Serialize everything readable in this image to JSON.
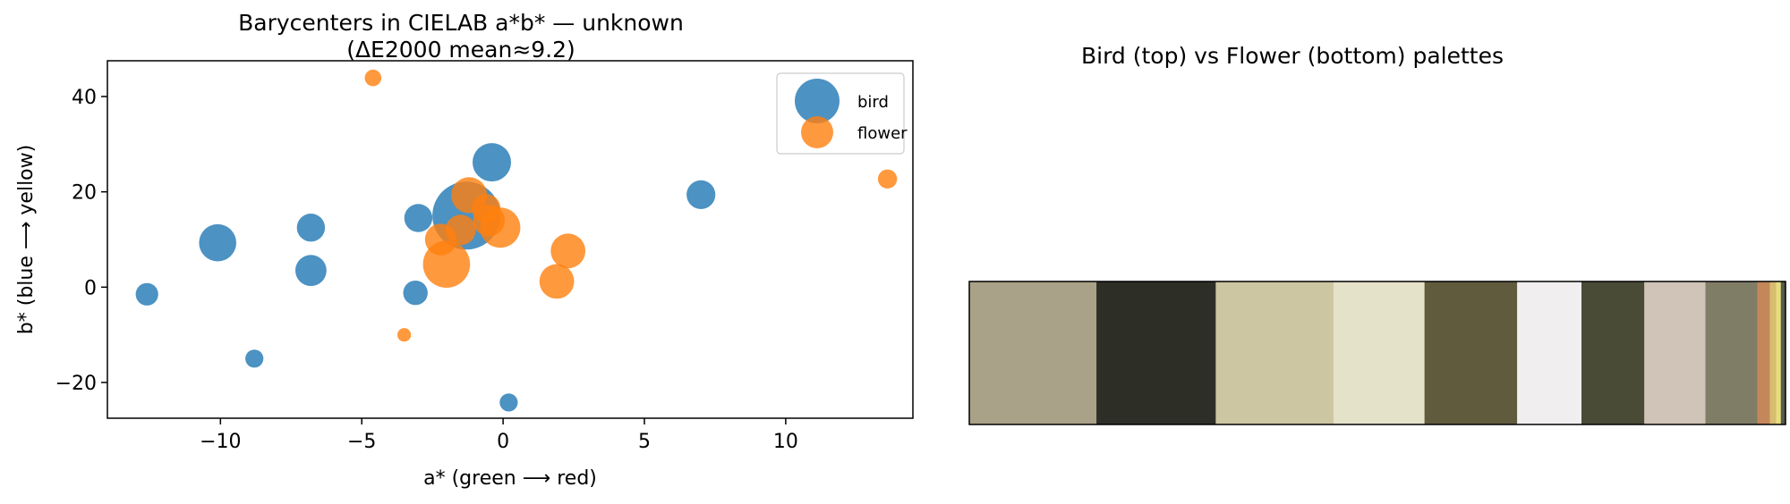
{
  "chart_data": [
    {
      "type": "scatter",
      "title": "Barycenters in CIELAB a*b* — unknown",
      "subtitle": "(ΔE2000 mean≈9.2)",
      "xlabel": "a* (green ⟶ red)",
      "ylabel": "b* (blue ⟶ yellow)",
      "xlim": [
        -14,
        14.5
      ],
      "ylim": [
        -27.5,
        47.5
      ],
      "xticks": [
        -10,
        -5,
        0,
        5,
        10
      ],
      "xtick_labels": [
        "−10",
        "−5",
        "0",
        "5",
        "10"
      ],
      "yticks": [
        -20,
        0,
        20,
        40
      ],
      "ytick_labels": [
        "−20",
        "0",
        "20",
        "40"
      ],
      "grid": false,
      "legend_position": "top-right",
      "series": [
        {
          "name": "bird",
          "color": "#1f77b4",
          "points": [
            {
              "x": -12.6,
              "y": -1.5,
              "size": 0.11
            },
            {
              "x": -10.1,
              "y": 9.3,
              "size": 0.3
            },
            {
              "x": -8.8,
              "y": -15.0,
              "size": 0.07
            },
            {
              "x": -6.8,
              "y": 12.5,
              "size": 0.17
            },
            {
              "x": -6.8,
              "y": 3.5,
              "size": 0.21
            },
            {
              "x": -3.0,
              "y": 14.5,
              "size": 0.17
            },
            {
              "x": -3.1,
              "y": -1.2,
              "size": 0.13
            },
            {
              "x": -0.4,
              "y": 26.2,
              "size": 0.32
            },
            {
              "x": 0.2,
              "y": -24.2,
              "size": 0.07
            },
            {
              "x": 7.0,
              "y": 19.4,
              "size": 0.18
            },
            {
              "x": -1.3,
              "y": 15.0,
              "size": 1.0
            }
          ]
        },
        {
          "name": "flower",
          "color": "#ff7f0e",
          "points": [
            {
              "x": -4.6,
              "y": 43.9,
              "size": 0.06
            },
            {
              "x": -3.5,
              "y": -10.0,
              "size": 0.04
            },
            {
              "x": -2.0,
              "y": 4.8,
              "size": 0.48
            },
            {
              "x": -2.2,
              "y": 10.0,
              "size": 0.22
            },
            {
              "x": -1.5,
              "y": 12.0,
              "size": 0.2
            },
            {
              "x": -1.2,
              "y": 19.3,
              "size": 0.28
            },
            {
              "x": -0.6,
              "y": 16.5,
              "size": 0.18
            },
            {
              "x": -0.5,
              "y": 14.0,
              "size": 0.22
            },
            {
              "x": -0.1,
              "y": 12.5,
              "size": 0.35
            },
            {
              "x": 1.9,
              "y": 1.2,
              "size": 0.26
            },
            {
              "x": 2.3,
              "y": 7.6,
              "size": 0.26
            },
            {
              "x": 13.6,
              "y": 22.7,
              "size": 0.08
            }
          ]
        }
      ]
    },
    {
      "type": "palette",
      "title": "Bird (top) vs Flower (bottom) palettes",
      "swatches": [
        {
          "color": "#a9a288",
          "weight": 8.1
        },
        {
          "color": "#2d2f27",
          "weight": 7.6
        },
        {
          "color": "#cdc6a2",
          "weight": 7.5
        },
        {
          "color": "#e4e2c9",
          "weight": 5.8
        },
        {
          "color": "#615b3e",
          "weight": 5.9
        },
        {
          "color": "#f0eeef",
          "weight": 4.1
        },
        {
          "color": "#4a4b37",
          "weight": 4.0
        },
        {
          "color": "#cfc4b7",
          "weight": 3.9
        },
        {
          "color": "#807d67",
          "weight": 3.3
        },
        {
          "color": "#c4875a",
          "weight": 0.8
        },
        {
          "color": "#d7bd6f",
          "weight": 0.4
        },
        {
          "color": "#e8dd80",
          "weight": 0.3
        },
        {
          "color": "#545a4a",
          "weight": 0.3
        }
      ]
    }
  ]
}
